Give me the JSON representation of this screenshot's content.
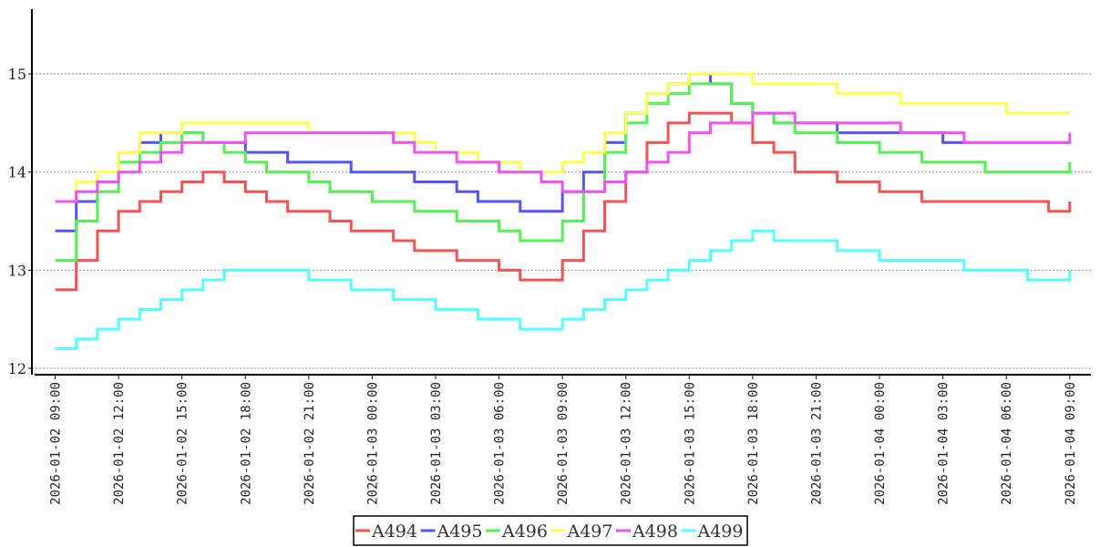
{
  "chart_data": {
    "type": "line",
    "step": true,
    "title": "",
    "xlabel": "",
    "ylabel": "",
    "x_start": "2026-01-02 09:00",
    "x_unit": "hours since start",
    "x": [
      0,
      1,
      2,
      3,
      4,
      5,
      6,
      7,
      8,
      9,
      10,
      11,
      12,
      13,
      14,
      15,
      16,
      17,
      18,
      19,
      20,
      21,
      22,
      23,
      24,
      25,
      26,
      27,
      28,
      29,
      30,
      31,
      32,
      33,
      34,
      35,
      36,
      37,
      38,
      39,
      40,
      41,
      42,
      43,
      44,
      45,
      46,
      47,
      48
    ],
    "xlim": [
      -1.1,
      49.0
    ],
    "ylim": [
      11.935,
      15.66
    ],
    "yticks": [
      12,
      13,
      14,
      15
    ],
    "xtick_hours": [
      0,
      3,
      6,
      9,
      12,
      15,
      18,
      21,
      24,
      27,
      30,
      33,
      36,
      39,
      42,
      45,
      48
    ],
    "xtick_labels": [
      "2026-01-02  09:00",
      "2026-01-02  12:00",
      "2026-01-02  15:00",
      "2026-01-02  18:00",
      "2026-01-02  21:00",
      "2026-01-03  00:00",
      "2026-01-03  03:00",
      "2026-01-03  06:00",
      "2026-01-03  09:00",
      "2026-01-03  12:00",
      "2026-01-03  15:00",
      "2026-01-03  18:00",
      "2026-01-03  21:00",
      "2026-01-04  00:00",
      "2026-01-04  03:00",
      "2026-01-04  06:00",
      "2026-01-04  09:00"
    ],
    "grid": "horizontal dashed",
    "legend_position": "bottom-center",
    "series": [
      {
        "name": "A494",
        "color": "#f05454",
        "values": [
          12.8,
          13.1,
          13.4,
          13.6,
          13.7,
          13.8,
          13.9,
          14.0,
          13.9,
          13.8,
          13.7,
          13.6,
          13.6,
          13.5,
          13.4,
          13.4,
          13.3,
          13.2,
          13.2,
          13.1,
          13.1,
          13.0,
          12.9,
          12.9,
          13.1,
          13.4,
          13.7,
          14.0,
          14.3,
          14.5,
          14.6,
          14.6,
          14.5,
          14.3,
          14.2,
          14.0,
          14.0,
          13.9,
          13.9,
          13.8,
          13.8,
          13.7,
          13.7,
          13.7,
          13.7,
          13.7,
          13.7,
          13.6,
          13.7
        ]
      },
      {
        "name": "A495",
        "color": "#5454f0",
        "values": [
          13.4,
          13.7,
          13.9,
          14.2,
          14.3,
          14.4,
          14.4,
          14.3,
          14.3,
          14.2,
          14.2,
          14.1,
          14.1,
          14.1,
          14.0,
          14.0,
          14.0,
          13.9,
          13.9,
          13.8,
          13.7,
          13.7,
          13.6,
          13.6,
          13.8,
          14.0,
          14.3,
          14.6,
          14.8,
          14.9,
          15.0,
          14.9,
          14.7,
          14.6,
          14.5,
          14.5,
          14.5,
          14.4,
          14.4,
          14.4,
          14.4,
          14.4,
          14.3,
          14.3,
          14.3,
          14.3,
          14.3,
          14.3,
          14.3
        ]
      },
      {
        "name": "A496",
        "color": "#54f054",
        "values": [
          13.1,
          13.5,
          13.8,
          14.1,
          14.2,
          14.3,
          14.4,
          14.3,
          14.2,
          14.1,
          14.0,
          14.0,
          13.9,
          13.8,
          13.8,
          13.7,
          13.7,
          13.6,
          13.6,
          13.5,
          13.5,
          13.4,
          13.3,
          13.3,
          13.5,
          13.8,
          14.2,
          14.5,
          14.7,
          14.8,
          14.9,
          14.9,
          14.7,
          14.6,
          14.5,
          14.4,
          14.4,
          14.3,
          14.3,
          14.2,
          14.2,
          14.1,
          14.1,
          14.1,
          14.0,
          14.0,
          14.0,
          14.0,
          14.1
        ]
      },
      {
        "name": "A497",
        "color": "#ffff54",
        "values": [
          13.7,
          13.9,
          14.0,
          14.2,
          14.4,
          14.4,
          14.5,
          14.5,
          14.5,
          14.5,
          14.5,
          14.5,
          14.4,
          14.4,
          14.4,
          14.4,
          14.4,
          14.3,
          14.2,
          14.2,
          14.1,
          14.1,
          14.0,
          14.0,
          14.1,
          14.2,
          14.4,
          14.6,
          14.8,
          14.9,
          15.0,
          15.0,
          15.0,
          14.9,
          14.9,
          14.9,
          14.9,
          14.8,
          14.8,
          14.8,
          14.7,
          14.7,
          14.7,
          14.7,
          14.7,
          14.6,
          14.6,
          14.6,
          14.6
        ]
      },
      {
        "name": "A498",
        "color": "#f054f0",
        "values": [
          13.7,
          13.8,
          13.9,
          14.0,
          14.1,
          14.2,
          14.3,
          14.3,
          14.3,
          14.4,
          14.4,
          14.4,
          14.4,
          14.4,
          14.4,
          14.4,
          14.3,
          14.2,
          14.2,
          14.1,
          14.1,
          14.0,
          14.0,
          13.9,
          13.8,
          13.8,
          13.9,
          14.0,
          14.1,
          14.2,
          14.4,
          14.5,
          14.5,
          14.6,
          14.6,
          14.5,
          14.5,
          14.5,
          14.5,
          14.5,
          14.4,
          14.4,
          14.4,
          14.3,
          14.3,
          14.3,
          14.3,
          14.3,
          14.4
        ]
      },
      {
        "name": "A499",
        "color": "#54ffff",
        "values": [
          12.2,
          12.3,
          12.4,
          12.5,
          12.6,
          12.7,
          12.8,
          12.9,
          13.0,
          13.0,
          13.0,
          13.0,
          12.9,
          12.9,
          12.8,
          12.8,
          12.7,
          12.7,
          12.6,
          12.6,
          12.5,
          12.5,
          12.4,
          12.4,
          12.5,
          12.6,
          12.7,
          12.8,
          12.9,
          13.0,
          13.1,
          13.2,
          13.3,
          13.4,
          13.3,
          13.3,
          13.3,
          13.2,
          13.2,
          13.1,
          13.1,
          13.1,
          13.1,
          13.0,
          13.0,
          13.0,
          12.9,
          12.9,
          13.0
        ]
      }
    ]
  }
}
